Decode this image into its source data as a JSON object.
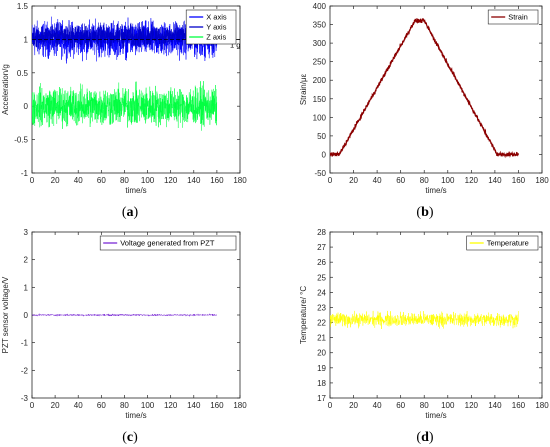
{
  "captions": [
    "(a)",
    "(b)",
    "(c)",
    "(d)"
  ],
  "chart_data": [
    {
      "type": "line",
      "panel": "a",
      "xlabel": "time/s",
      "ylabel": "Acceleration/g",
      "xlim": [
        0,
        180
      ],
      "ylim": [
        -1,
        1.5
      ],
      "xticks": [
        0,
        20,
        40,
        60,
        80,
        100,
        120,
        140,
        160,
        180
      ],
      "yticks": [
        -1,
        -0.5,
        0,
        0.5,
        1,
        1.5
      ],
      "xticklabels": [
        "0",
        "20",
        "40",
        "60",
        "80",
        "100",
        "120",
        "140",
        "160",
        "180"
      ],
      "yticklabels": [
        "-1",
        "-0.5",
        "0",
        "0.5",
        "1",
        "1.5"
      ],
      "legend_position": "top-right",
      "annotation": "1 g",
      "reference_line_y": 1,
      "series": [
        {
          "name": "X axis",
          "color": "#0000ff",
          "t_end": 160,
          "center": 1.0,
          "amplitude": 0.38
        },
        {
          "name": "Y axis",
          "color": "#0000c8",
          "t_end": 160,
          "center": 1.05,
          "amplitude": 0.25
        },
        {
          "name": "Z axis",
          "color": "#00ff40",
          "t_end": 160,
          "center": 0.0,
          "amplitude": 0.42
        }
      ]
    },
    {
      "type": "line",
      "panel": "b",
      "xlabel": "time/s",
      "ylabel": "Strain/με",
      "xlim": [
        0,
        180
      ],
      "ylim": [
        -50,
        400
      ],
      "xticks": [
        0,
        20,
        40,
        60,
        80,
        100,
        120,
        140,
        160,
        180
      ],
      "yticks": [
        -50,
        0,
        50,
        100,
        150,
        200,
        250,
        300,
        350,
        400
      ],
      "xticklabels": [
        "0",
        "20",
        "40",
        "60",
        "80",
        "100",
        "120",
        "140",
        "160",
        "180"
      ],
      "yticklabels": [
        "-50",
        "0",
        "50",
        "100",
        "150",
        "200",
        "250",
        "300",
        "350",
        "400"
      ],
      "legend_position": "top-right",
      "series": [
        {
          "name": "Strain",
          "color": "#8b0000",
          "x": [
            0,
            8,
            72,
            80,
            142,
            160
          ],
          "y": [
            0,
            0,
            360,
            360,
            0,
            0
          ],
          "noise": 8
        }
      ]
    },
    {
      "type": "line",
      "panel": "c",
      "xlabel": "time/s",
      "ylabel": "PZT sensor voltage/V",
      "xlim": [
        0,
        180
      ],
      "ylim": [
        -3,
        3
      ],
      "xticks": [
        0,
        20,
        40,
        60,
        80,
        100,
        120,
        140,
        160,
        180
      ],
      "yticks": [
        -3,
        -2,
        -1,
        0,
        1,
        2,
        3
      ],
      "xticklabels": [
        "0",
        "20",
        "40",
        "60",
        "80",
        "100",
        "120",
        "140",
        "160",
        "180"
      ],
      "yticklabels": [
        "-3",
        "-2",
        "-1",
        "0",
        "1",
        "2",
        "3"
      ],
      "legend_position": "top-right",
      "series": [
        {
          "name": "Voltage generated from PZT",
          "color": "#7b2bd6",
          "t_end": 160,
          "center": 0.0,
          "amplitude": 0.05
        }
      ]
    },
    {
      "type": "line",
      "panel": "d",
      "xlabel": "time/s",
      "ylabel": "Temperature/ °C",
      "xlim": [
        0,
        180
      ],
      "ylim": [
        17,
        28
      ],
      "xticks": [
        0,
        20,
        40,
        60,
        80,
        100,
        120,
        140,
        160,
        180
      ],
      "yticks": [
        17,
        18,
        19,
        20,
        21,
        22,
        23,
        24,
        25,
        26,
        27,
        28
      ],
      "xticklabels": [
        "0",
        "20",
        "40",
        "60",
        "80",
        "100",
        "120",
        "140",
        "160",
        "180"
      ],
      "yticklabels": [
        "17",
        "18",
        "19",
        "20",
        "21",
        "22",
        "23",
        "24",
        "25",
        "26",
        "27",
        "28"
      ],
      "legend_position": "top-right",
      "series": [
        {
          "name": "Temperature",
          "color": "#ffff00",
          "t_end": 160,
          "center": 22.2,
          "amplitude": 0.7
        }
      ]
    }
  ]
}
